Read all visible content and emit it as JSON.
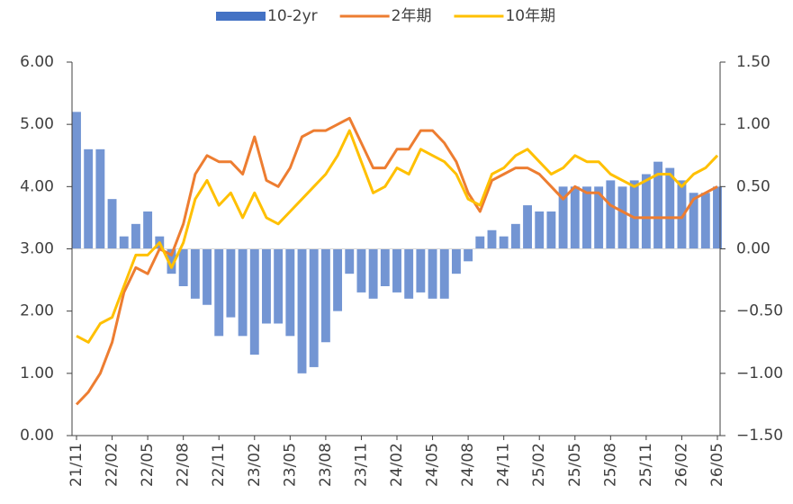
{
  "chart_data": {
    "type": "bar_line",
    "categories": [
      "21/11",
      null,
      null,
      "22/02",
      null,
      null,
      "22/05",
      null,
      null,
      "22/08",
      null,
      null,
      "22/11",
      null,
      null,
      "23/02",
      null,
      null,
      "23/05",
      null,
      null,
      "23/08",
      null,
      null,
      "23/11",
      null,
      null,
      "24/02",
      null,
      null,
      "24/05",
      null,
      null,
      "24/08",
      null,
      null,
      "24/11",
      null,
      null,
      "25/02",
      null,
      null,
      "25/05",
      null,
      null,
      "25/08",
      null,
      null,
      "25/11",
      null,
      null,
      "26/02",
      null,
      null,
      "26/05"
    ],
    "series": [
      {
        "name": "10-2yr",
        "type": "bar",
        "axis": "y2",
        "color": "#4472c4",
        "values": [
          1.1,
          0.8,
          0.8,
          0.4,
          0.1,
          0.2,
          0.3,
          0.1,
          -0.2,
          -0.3,
          -0.4,
          -0.45,
          -0.7,
          -0.55,
          -0.7,
          -0.85,
          -0.6,
          -0.6,
          -0.7,
          -1.0,
          -0.95,
          -0.75,
          -0.5,
          -0.2,
          -0.35,
          -0.4,
          -0.3,
          -0.35,
          -0.4,
          -0.35,
          -0.4,
          -0.4,
          -0.2,
          -0.1,
          0.1,
          0.15,
          0.1,
          0.2,
          0.35,
          0.3,
          0.3,
          0.5,
          0.5,
          0.5,
          0.5,
          0.55,
          0.5,
          0.55,
          0.6,
          0.7,
          0.65,
          0.55,
          0.45,
          0.45,
          0.5
        ]
      },
      {
        "name": "2年期",
        "type": "line",
        "color": "#ed7d31",
        "values": [
          0.5,
          0.7,
          1.0,
          1.5,
          2.3,
          2.7,
          2.6,
          3.0,
          2.9,
          3.4,
          4.2,
          4.5,
          4.4,
          4.4,
          4.2,
          4.8,
          4.1,
          4.0,
          4.3,
          4.8,
          4.9,
          4.9,
          5.0,
          5.1,
          4.7,
          4.3,
          4.3,
          4.6,
          4.6,
          4.9,
          4.9,
          4.7,
          4.4,
          3.9,
          3.6,
          4.1,
          4.2,
          4.3,
          4.3,
          4.2,
          4.0,
          3.8,
          4.0,
          3.9,
          3.9,
          3.7,
          3.6,
          3.5,
          3.5,
          3.5,
          3.5,
          3.5,
          3.8,
          3.9,
          4.0
        ]
      },
      {
        "name": "10年期",
        "type": "line",
        "color": "#ffc000",
        "values": [
          1.6,
          1.5,
          1.8,
          1.9,
          2.4,
          2.9,
          2.9,
          3.1,
          2.7,
          3.1,
          3.8,
          4.1,
          3.7,
          3.9,
          3.5,
          3.9,
          3.5,
          3.4,
          3.6,
          3.8,
          4.0,
          4.2,
          4.5,
          4.9,
          4.4,
          3.9,
          4.0,
          4.3,
          4.2,
          4.6,
          4.5,
          4.4,
          4.2,
          3.8,
          3.7,
          4.2,
          4.3,
          4.5,
          4.6,
          4.4,
          4.2,
          4.3,
          4.5,
          4.4,
          4.4,
          4.2,
          4.1,
          4.0,
          4.1,
          4.2,
          4.2,
          4.0,
          4.2,
          4.3,
          4.5
        ]
      }
    ],
    "ylim": [
      0,
      6
    ],
    "yticks": [
      {
        "value": 0,
        "label": "0.00"
      },
      {
        "value": 1,
        "label": "1.00"
      },
      {
        "value": 2,
        "label": "2.00"
      },
      {
        "value": 3,
        "label": "3.00"
      },
      {
        "value": 4,
        "label": "4.00"
      },
      {
        "value": 5,
        "label": "5.00"
      },
      {
        "value": 6,
        "label": "6.00"
      }
    ],
    "y2lim": [
      -1.5,
      1.5
    ],
    "y2ticks": [
      {
        "value": -1.5,
        "label": "−1.50"
      },
      {
        "value": -1,
        "label": "−1.00"
      },
      {
        "value": -0.5,
        "label": "−0.50"
      },
      {
        "value": 0,
        "label": "0.00"
      },
      {
        "value": 0.5,
        "label": "0.50"
      },
      {
        "value": 1,
        "label": "1.00"
      },
      {
        "value": 1.5,
        "label": "1.50"
      }
    ],
    "legend": "top"
  }
}
